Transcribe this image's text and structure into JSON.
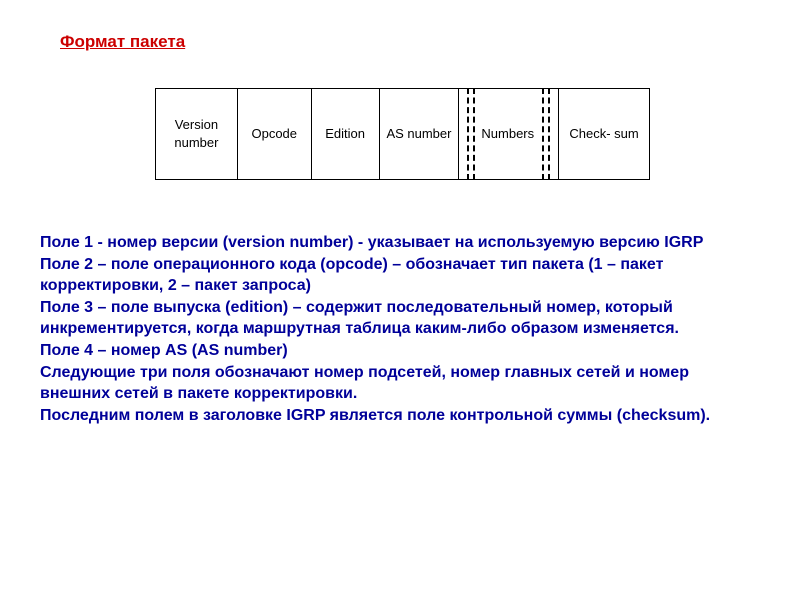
{
  "title": "Формат пакета ",
  "cells": {
    "c1": "Version number",
    "c2": "Opcode",
    "c3": "Edition",
    "c4": "AS number",
    "c5": "Numbers",
    "c6": "Check- sum"
  },
  "colors": {
    "title": "#cc0000",
    "desc": "#000099",
    "border": "#000000",
    "background": "#ffffff"
  },
  "desc": {
    "p1": "Поле 1 - номер версии (version number) - указывает на используемую версию IGRP",
    "p2": "Поле 2 – поле операционного кода (opcode) – обозначает тип пакета (1 – пакет корректировки, 2 – пакет  запроса)",
    "p3": "Поле 3 – поле выпуска (edition) – содержит последовательный номер, который инкрементируется, когда маршрутная таблица каким-либо образом изменяется.",
    "p4": "Поле 4 – номер AS (AS number)",
    "p5": "Следующие три поля обозначают номер подсетей, номер главных сетей и номер внешних сетей в пакете корректировки.",
    "p6": "Последним полем в заголовке IGRP является поле контрольной суммы (checksum)."
  }
}
